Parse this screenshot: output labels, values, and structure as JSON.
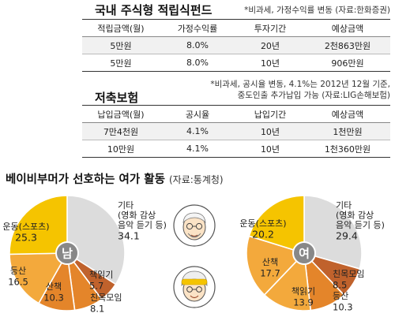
{
  "fund": {
    "title": "국내 주식형 적립식펀드",
    "note": "*비과세, 가정수익률 변동 (자료:한화증권)",
    "headers": [
      "적립금액(월)",
      "가정수익률",
      "투자기간",
      "예상금액"
    ],
    "rows": [
      [
        "5만원",
        "8.0%",
        "20년",
        "2천863만원"
      ],
      [
        "5만원",
        "8.0%",
        "10년",
        "906만원"
      ]
    ]
  },
  "insurance": {
    "title": "저축보험",
    "note_line1": "*비과세, 공시율 변동, 4.1%는 2012년 12월 기준,",
    "note_line2": "중도인출 추가납입 가능 (자료:LIG손해보험)",
    "headers": [
      "납입금액(월)",
      "공시율",
      "납입기간",
      "예상금액"
    ],
    "rows": [
      [
        "7만4천원",
        "4.1%",
        "10년",
        "1천만원"
      ],
      [
        "10만원",
        "4.1%",
        "10년",
        "1천360만원"
      ]
    ]
  },
  "activities": {
    "title": "베이비부머가 선호하는 여가 활동",
    "source": "(자료:통계청)"
  },
  "colors": {
    "yellow": "#f5c400",
    "light_orange": "#f3a93c",
    "orange": "#e4852a",
    "brown": "#c0622c",
    "gray": "#dcdcdc",
    "badge": "#888888"
  },
  "chart_data": [
    {
      "type": "pie",
      "center_label": "남",
      "slices": [
        {
          "label": "기타 (영화 감상 음악 듣기 등)",
          "label_lines": [
            "기타",
            "(영화 감상",
            "음악 듣기 등)"
          ],
          "value": 34.1,
          "value_text": "34.1",
          "color": "#dcdcdc"
        },
        {
          "label": "책읽기",
          "label_lines": [
            "책읽기"
          ],
          "value": 5.7,
          "value_text": "5.7",
          "color": "#c0622c"
        },
        {
          "label": "친목모임",
          "label_lines": [
            "친목모임"
          ],
          "value": 8.1,
          "value_text": "8.1",
          "color": "#e4852a"
        },
        {
          "label": "산책",
          "label_lines": [
            "산책"
          ],
          "value": 10.3,
          "value_text": "10.3",
          "color": "#e4852a"
        },
        {
          "label": "등산",
          "label_lines": [
            "등산"
          ],
          "value": 16.5,
          "value_text": "16.5",
          "color": "#f3a93c"
        },
        {
          "label": "운동(스포츠)",
          "label_lines": [
            "운동(스포츠)"
          ],
          "value": 25.3,
          "value_text": "25.3",
          "color": "#f5c400"
        }
      ]
    },
    {
      "type": "pie",
      "center_label": "여",
      "slices": [
        {
          "label": "기타 (영화 감상 음악 듣기 등)",
          "label_lines": [
            "기타",
            "(영화 감상",
            "음악 듣기 등)"
          ],
          "value": 29.4,
          "value_text": "29.4",
          "color": "#dcdcdc"
        },
        {
          "label": "친목모임",
          "label_lines": [
            "친목모임"
          ],
          "value": 8.5,
          "value_text": "8.5",
          "color": "#c0622c"
        },
        {
          "label": "등산",
          "label_lines": [
            "등산"
          ],
          "value": 10.3,
          "value_text": "10.3",
          "color": "#e4852a"
        },
        {
          "label": "책읽기",
          "label_lines": [
            "책읽기"
          ],
          "value": 13.9,
          "value_text": "13.9",
          "color": "#f3a93c"
        },
        {
          "label": "산책",
          "label_lines": [
            "산책"
          ],
          "value": 17.7,
          "value_text": "17.7",
          "color": "#f3a93c"
        },
        {
          "label": "운동(스포츠)",
          "label_lines": [
            "운동(스포츠)"
          ],
          "value": 20.2,
          "value_text": "20.2",
          "color": "#f5c400"
        }
      ]
    }
  ]
}
